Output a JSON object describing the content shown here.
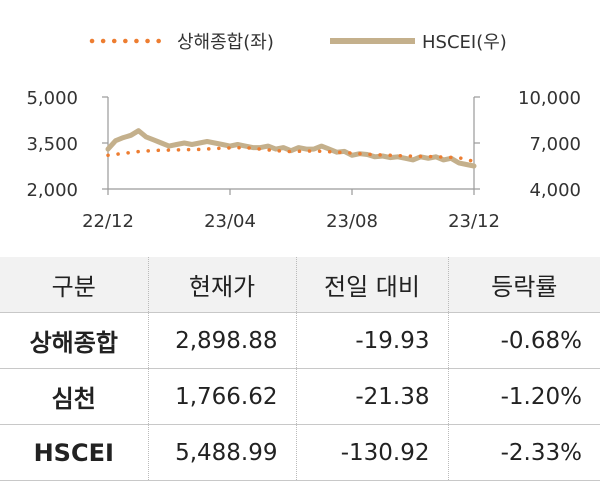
{
  "chart_data": {
    "type": "line",
    "legend": {
      "placement": "top-center"
    },
    "x_tick_labels": [
      "22/12",
      "23/04",
      "23/08",
      "23/12"
    ],
    "y_left": {
      "range": [
        2000,
        5000
      ],
      "tick_labels": [
        "5,000",
        "3,500",
        "2,000"
      ],
      "ticks": [
        5000,
        3500,
        2000
      ]
    },
    "y_right": {
      "range": [
        4000,
        10000
      ],
      "tick_labels": [
        "10,000",
        "7,000",
        "4,000"
      ],
      "ticks": [
        10000,
        7000,
        4000
      ]
    },
    "grid": false,
    "series": [
      {
        "name": "상해종합(좌)",
        "axis": "left",
        "style": "dotted",
        "color": "#ed7d31",
        "x": [
          0,
          0.5,
          1,
          1.5,
          2,
          2.5,
          3,
          3.5,
          4,
          4.5,
          5,
          5.5,
          6,
          6.5,
          7,
          7.5,
          8,
          8.5,
          9,
          9.5,
          10,
          10.5,
          11,
          11.5,
          12
        ],
        "values": [
          3100,
          3160,
          3220,
          3260,
          3270,
          3280,
          3290,
          3320,
          3340,
          3350,
          3300,
          3250,
          3220,
          3240,
          3230,
          3200,
          3170,
          3130,
          3110,
          3090,
          3070,
          3060,
          3040,
          3020,
          2900
        ]
      },
      {
        "name": "HSCEI(우)",
        "axis": "right",
        "style": "solid",
        "color": "#c4b08c",
        "x": [
          0,
          0.25,
          0.5,
          0.75,
          1,
          1.25,
          1.5,
          1.75,
          2,
          2.25,
          2.5,
          2.75,
          3,
          3.25,
          3.5,
          3.75,
          4,
          4.25,
          4.5,
          4.75,
          5,
          5.25,
          5.5,
          5.75,
          6,
          6.25,
          6.5,
          6.75,
          7,
          7.25,
          7.5,
          7.75,
          8,
          8.25,
          8.5,
          8.75,
          9,
          9.25,
          9.5,
          9.75,
          10,
          10.25,
          10.5,
          10.75,
          11,
          11.25,
          11.5,
          11.75,
          12
        ],
        "values": [
          6600,
          7150,
          7350,
          7500,
          7800,
          7400,
          7200,
          7000,
          6800,
          6900,
          7000,
          6900,
          7000,
          7100,
          7000,
          6900,
          6800,
          6900,
          6800,
          6700,
          6700,
          6800,
          6600,
          6700,
          6500,
          6700,
          6600,
          6600,
          6800,
          6600,
          6400,
          6450,
          6200,
          6300,
          6250,
          6100,
          6150,
          6050,
          6100,
          6000,
          5900,
          6100,
          6000,
          6100,
          5900,
          6000,
          5700,
          5600,
          5500
        ]
      }
    ]
  },
  "table": {
    "headers": [
      "구분",
      "현재가",
      "전일 대비",
      "등락률"
    ],
    "rows": [
      [
        "상해종합",
        "2,898.88",
        "-19.93",
        "-0.68%"
      ],
      [
        "심천",
        "1,766.62",
        "-21.38",
        "-1.20%"
      ],
      [
        "HSCEI",
        "5,488.99",
        "-130.92",
        "-2.33%"
      ]
    ]
  }
}
